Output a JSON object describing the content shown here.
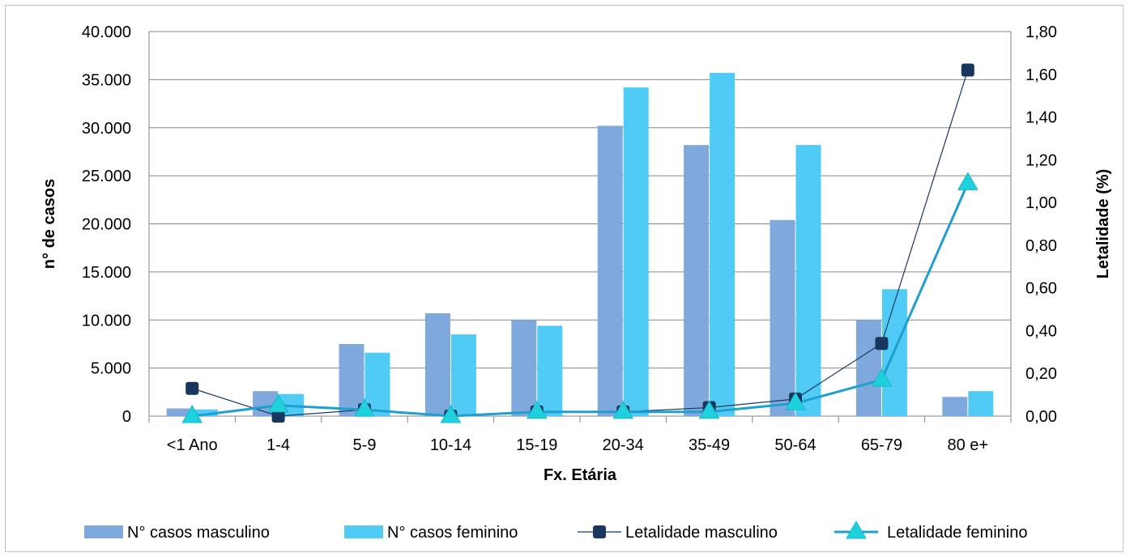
{
  "chart_data": {
    "type": "bar",
    "categories": [
      "<1 Ano",
      "1-4",
      "5-9",
      "10-14",
      "15-19",
      "20-34",
      "35-49",
      "50-64",
      "65-79",
      "80 e+"
    ],
    "xlabel": "Fx. Etária",
    "ylabel": "n° de casos",
    "y2label": "Letalidade (%)",
    "ylim": [
      0,
      40000
    ],
    "y2lim": [
      0,
      1.8
    ],
    "yticks": [
      "0",
      "5.000",
      "10.000",
      "15.000",
      "20.000",
      "25.000",
      "30.000",
      "35.000",
      "40.000"
    ],
    "y2ticks": [
      "0,00",
      "0,20",
      "0,40",
      "0,60",
      "0,80",
      "1,00",
      "1,20",
      "1,40",
      "1,60",
      "1,80"
    ],
    "grid": true,
    "legend_position": "bottom",
    "series": [
      {
        "name": "N°  casos masculino",
        "kind": "bar",
        "axis": "left",
        "color": "#7fa9dd",
        "values": [
          800,
          2600,
          7500,
          10700,
          10000,
          30200,
          28200,
          20400,
          10000,
          2000
        ]
      },
      {
        "name": "N° casos feminino",
        "kind": "bar",
        "axis": "left",
        "color": "#4fcbf5",
        "values": [
          700,
          2300,
          6600,
          8500,
          9400,
          34200,
          35700,
          28200,
          13200,
          2600
        ]
      },
      {
        "name": "Letalidade masculino",
        "kind": "line",
        "axis": "right",
        "color": "#17375e",
        "marker": "square",
        "values": [
          0.13,
          0.0,
          0.03,
          0.0,
          0.02,
          0.02,
          0.04,
          0.08,
          0.34,
          1.62
        ]
      },
      {
        "name": "Letalidade feminino",
        "kind": "line",
        "axis": "right",
        "color": "#1f9fd0",
        "marker": "triangle",
        "values": [
          0.0,
          0.05,
          0.03,
          0.0,
          0.02,
          0.02,
          0.02,
          0.06,
          0.17,
          1.09
        ]
      }
    ]
  }
}
